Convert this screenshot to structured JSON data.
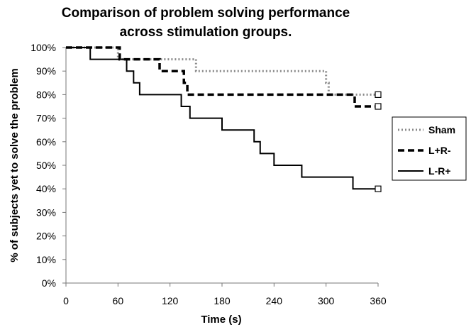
{
  "chart_data": {
    "type": "line",
    "step": true,
    "title_lines": [
      "Comparison of problem solving performance",
      "across stimulation groups."
    ],
    "xlabel": "Time (s)",
    "ylabel": "% of subjects yet to solve the problem",
    "xlim": [
      0,
      360
    ],
    "ylim": [
      0,
      100
    ],
    "x_ticks": [
      0,
      60,
      120,
      180,
      240,
      300,
      360
    ],
    "x_tick_labels": [
      "0",
      "60",
      "120",
      "180",
      "240",
      "300",
      "360"
    ],
    "y_ticks": [
      0,
      10,
      20,
      30,
      40,
      50,
      60,
      70,
      80,
      90,
      100
    ],
    "y_tick_labels": [
      "0%",
      "10%",
      "20%",
      "30%",
      "40%",
      "50%",
      "60%",
      "70%",
      "80%",
      "90%",
      "100%"
    ],
    "grid": false,
    "legend_position": "right",
    "series": [
      {
        "name": "Sham",
        "style": "dotted",
        "color": "#8a8a8a",
        "points": [
          [
            0,
            100
          ],
          [
            60,
            95
          ],
          [
            150,
            90
          ],
          [
            300,
            85
          ],
          [
            303,
            80
          ],
          [
            360,
            80
          ]
        ],
        "censored_end": true
      },
      {
        "name": "L+R-",
        "style": "dashed",
        "color": "#000000",
        "points": [
          [
            0,
            100
          ],
          [
            62,
            95
          ],
          [
            108,
            90
          ],
          [
            136,
            85
          ],
          [
            140,
            80
          ],
          [
            333,
            75
          ],
          [
            360,
            75
          ]
        ],
        "censored_end": true
      },
      {
        "name": "L-R+",
        "style": "solid",
        "color": "#000000",
        "points": [
          [
            0,
            100
          ],
          [
            28,
            95
          ],
          [
            70,
            90
          ],
          [
            78,
            85
          ],
          [
            85,
            80
          ],
          [
            133,
            75
          ],
          [
            143,
            70
          ],
          [
            180,
            65
          ],
          [
            217,
            60
          ],
          [
            224,
            55
          ],
          [
            240,
            50
          ],
          [
            272,
            45
          ],
          [
            331,
            40
          ],
          [
            360,
            40
          ]
        ],
        "censored_end": true
      }
    ]
  }
}
